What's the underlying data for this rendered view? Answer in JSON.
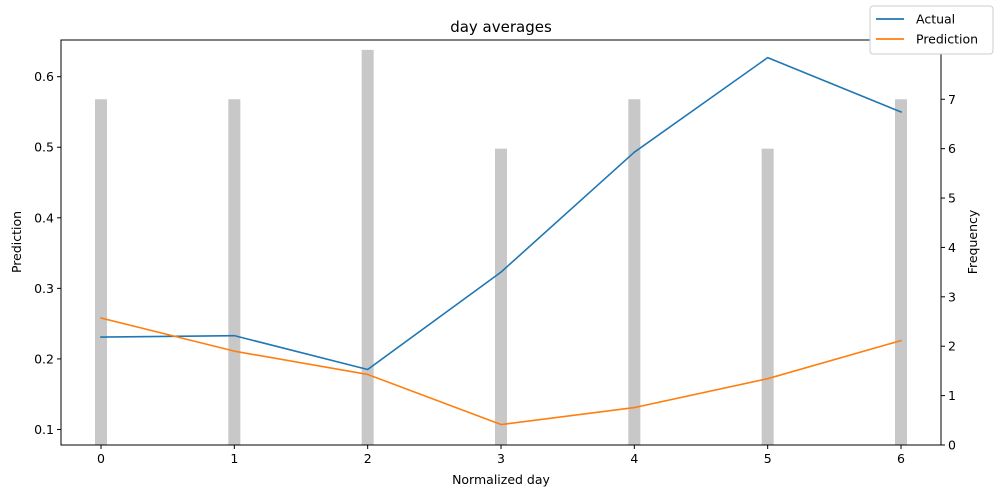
{
  "chart_data": {
    "type": "line",
    "title": "day averages",
    "xlabel": "Normalized day",
    "ylabel": "Prediction",
    "y2label": "Frequency",
    "x": [
      0,
      1,
      2,
      3,
      4,
      5,
      6
    ],
    "xticks": [
      "0",
      "1",
      "2",
      "3",
      "4",
      "5",
      "6"
    ],
    "xlim": [
      -0.3,
      6.3
    ],
    "ylim": [
      0.078,
      0.652
    ],
    "yticks": [
      "0.1",
      "0.2",
      "0.3",
      "0.4",
      "0.5",
      "0.6"
    ],
    "y2lim": [
      0,
      8.2
    ],
    "y2ticks": [
      "0",
      "1",
      "2",
      "3",
      "4",
      "5",
      "6",
      "7",
      "8"
    ],
    "series": [
      {
        "name": "Actual",
        "color": "#1f77b4",
        "values": [
          0.231,
          0.233,
          0.185,
          0.323,
          0.493,
          0.627,
          0.55
        ]
      },
      {
        "name": "Prediction",
        "color": "#ff7f0e",
        "values": [
          0.258,
          0.211,
          0.178,
          0.107,
          0.131,
          0.172,
          0.226
        ]
      }
    ],
    "bars": {
      "name": "Frequency",
      "color": "#c8c8c8",
      "axis": "y2",
      "values": [
        7,
        7,
        8,
        6,
        7,
        6,
        7
      ]
    },
    "legend_position": "top-right",
    "grid": false
  }
}
